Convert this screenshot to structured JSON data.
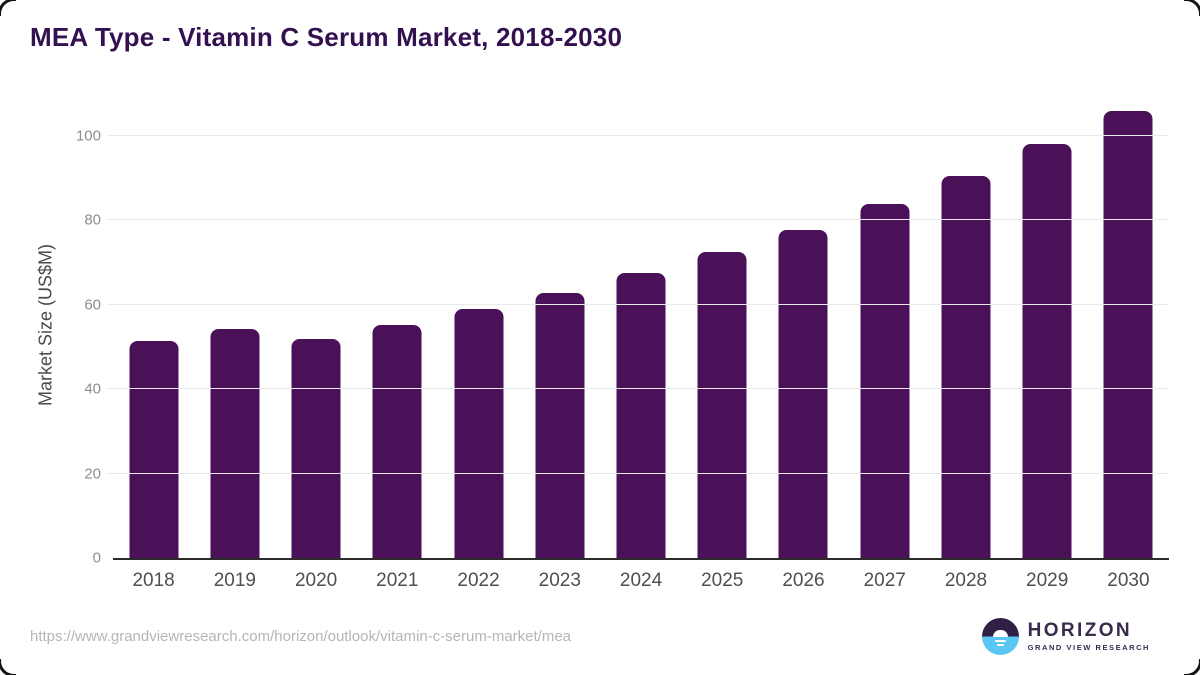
{
  "page": {
    "source_url": "https://www.grandviewresearch.com/horizon/outlook/vitamin-c-serum-market/mea",
    "logo": {
      "name": "HORIZON",
      "subtitle": "GRAND VIEW RESEARCH"
    }
  },
  "colors": {
    "bar": "#4a1158",
    "title_text": "#331050",
    "axis_line": "#2b2b2b",
    "gridline": "#e9e9e9",
    "y_tick_label": "#8e8e8e",
    "x_tick_label": "#4f4f4f",
    "source_text": "#b5b5b5",
    "logo_purple": "#3a2a4e",
    "logo_blue": "#5bc6f3"
  },
  "icons": {
    "logo_icon": "horizon-sun-circle-icon"
  },
  "chart_data": {
    "type": "bar",
    "title": "MEA Type - Vitamin C Serum Market, 2018-2030",
    "xlabel": "",
    "ylabel": "Market Size (US$M)",
    "categories": [
      "2018",
      "2019",
      "2020",
      "2021",
      "2022",
      "2023",
      "2024",
      "2025",
      "2026",
      "2027",
      "2028",
      "2029",
      "2030"
    ],
    "values": [
      51.3,
      54.2,
      51.8,
      55.1,
      58.9,
      62.8,
      67.4,
      72.4,
      77.6,
      83.8,
      90.4,
      98.0,
      105.9
    ],
    "yticks": [
      0,
      20,
      40,
      60,
      80,
      100
    ],
    "ylim": [
      0,
      106.6
    ],
    "grid": "horizontal",
    "legend": false,
    "bar_color": "#4a1158"
  }
}
